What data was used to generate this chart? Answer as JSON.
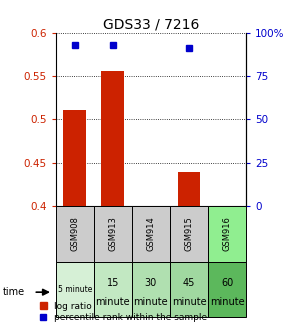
{
  "title": "GDS33 / 7216",
  "samples": [
    "GSM908",
    "GSM913",
    "GSM914",
    "GSM915",
    "GSM916"
  ],
  "time_labels_line1": [
    "5 minute",
    "15",
    "30",
    "45",
    "60"
  ],
  "time_labels_line2": [
    "",
    "minute",
    "minute",
    "minute",
    "minute"
  ],
  "time_bg_colors": [
    "#d6f0d6",
    "#c2e8c2",
    "#b0e0b0",
    "#a0d8a0",
    "#5cb85c"
  ],
  "log_ratio": [
    0.511,
    0.556,
    null,
    0.439,
    null
  ],
  "percentile_rank": [
    93,
    93,
    null,
    91,
    null
  ],
  "ylim_left": [
    0.4,
    0.6
  ],
  "ylim_right": [
    0,
    100
  ],
  "yticks_left": [
    0.4,
    0.45,
    0.5,
    0.55,
    0.6
  ],
  "yticks_right": [
    0,
    25,
    50,
    75,
    100
  ],
  "ytick_labels_left": [
    "0.4",
    "0.45",
    "0.5",
    "0.55",
    "0.6"
  ],
  "ytick_labels_right": [
    "0",
    "25",
    "50",
    "75",
    "100%"
  ],
  "bar_color": "#cc2200",
  "dot_color": "#0000cc",
  "bar_width": 0.6,
  "bg_sample_color": "#cccccc",
  "bg_gsm916_color": "#90ee90"
}
